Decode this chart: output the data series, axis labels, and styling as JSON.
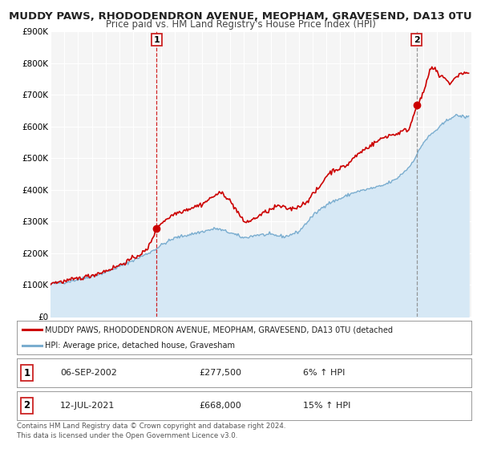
{
  "title": "MUDDY PAWS, RHODODENDRON AVENUE, MEOPHAM, GRAVESEND, DA13 0TU",
  "subtitle": "Price paid vs. HM Land Registry's House Price Index (HPI)",
  "ylim": [
    0,
    900000
  ],
  "xlim_start": 1995.0,
  "xlim_end": 2025.5,
  "yticks": [
    0,
    100000,
    200000,
    300000,
    400000,
    500000,
    600000,
    700000,
    800000,
    900000
  ],
  "ytick_labels": [
    "£0",
    "£100K",
    "£200K",
    "£300K",
    "£400K",
    "£500K",
    "£600K",
    "£700K",
    "£800K",
    "£900K"
  ],
  "xticks": [
    1995,
    1996,
    1997,
    1998,
    1999,
    2000,
    2001,
    2002,
    2003,
    2004,
    2005,
    2006,
    2007,
    2008,
    2009,
    2010,
    2011,
    2012,
    2013,
    2014,
    2015,
    2016,
    2017,
    2018,
    2019,
    2020,
    2021,
    2022,
    2023,
    2024,
    2025
  ],
  "red_line_color": "#cc0000",
  "blue_line_color": "#7aadcf",
  "blue_fill_color": "#d6e8f5",
  "marker1_x": 2002.69,
  "marker1_y": 277500,
  "marker2_x": 2021.54,
  "marker2_y": 668000,
  "vline1_x": 2002.69,
  "vline2_x": 2021.54,
  "legend_label_red": "MUDDY PAWS, RHODODENDRON AVENUE, MEOPHAM, GRAVESEND, DA13 0TU (detached",
  "legend_label_blue": "HPI: Average price, detached house, Gravesham",
  "table_row1": [
    "1",
    "06-SEP-2002",
    "£277,500",
    "6% ↑ HPI"
  ],
  "table_row2": [
    "2",
    "12-JUL-2021",
    "£668,000",
    "15% ↑ HPI"
  ],
  "footer1": "Contains HM Land Registry data © Crown copyright and database right 2024.",
  "footer2": "This data is licensed under the Open Government Licence v3.0.",
  "bg_color": "#ffffff",
  "plot_bg_color": "#f5f5f5",
  "grid_color": "#ffffff",
  "title_fontsize": 9.5,
  "subtitle_fontsize": 8.5
}
